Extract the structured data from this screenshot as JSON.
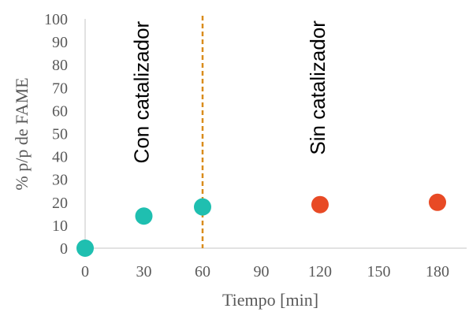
{
  "chart_data": {
    "type": "scatter",
    "xlabel": "Tiempo [min]",
    "ylabel": "% p/p de FAME",
    "xlim": [
      0,
      180
    ],
    "ylim": [
      0,
      100
    ],
    "xticks": [
      "0",
      "30",
      "60",
      "90",
      "120",
      "150",
      "180"
    ],
    "yticks": [
      "0",
      "10",
      "20",
      "30",
      "40",
      "50",
      "60",
      "70",
      "80",
      "90",
      "100"
    ],
    "grid": false,
    "series": [
      {
        "color": "#1fbfb0",
        "points": [
          {
            "x": 0,
            "y": 0
          },
          {
            "x": 30,
            "y": 14
          },
          {
            "x": 60,
            "y": 18
          }
        ]
      },
      {
        "color": "#e84a25",
        "points": [
          {
            "x": 120,
            "y": 19
          },
          {
            "x": 180,
            "y": 20
          }
        ]
      }
    ],
    "reference_line": {
      "x": 60,
      "style": "dashed",
      "color": "#d98c1c"
    },
    "annotations": [
      {
        "text": "Con catalizador",
        "x": 30,
        "y": 68,
        "orientation": "vertical"
      },
      {
        "text": "Sin catalizador",
        "x": 120,
        "y": 70,
        "orientation": "vertical"
      }
    ],
    "axis_color": "#d9d9d9"
  }
}
